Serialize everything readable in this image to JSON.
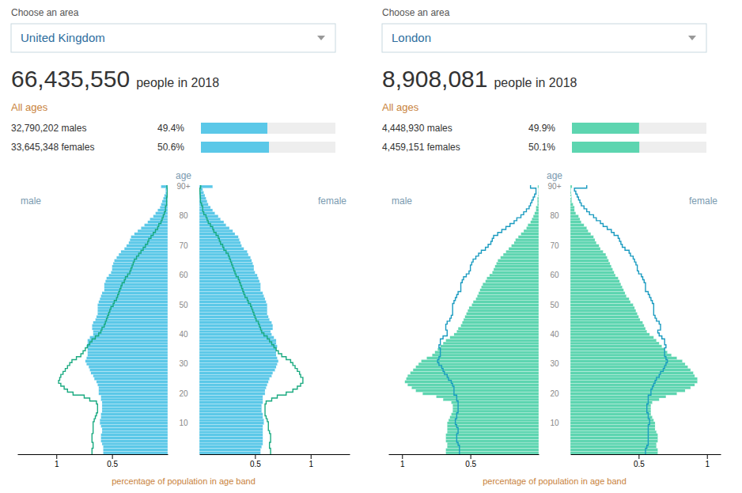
{
  "chart_data": [
    {
      "type": "bar",
      "orientation": "horizontal",
      "annotations": [
        "Choose an area",
        "United Kingdom",
        "66,435,550",
        "people in 2018",
        "All ages"
      ],
      "categories": [
        "32,790,202 males",
        "33,645,348 females"
      ],
      "values": [
        49.4,
        50.6
      ],
      "value_labels": [
        "49.4%",
        "50.6%"
      ],
      "data_labels": true,
      "color": "#5bc8e8",
      "xlim": [
        0,
        100
      ],
      "tick_labels": false
    },
    {
      "type": "bar",
      "orientation": "horizontal",
      "xlabel": "percentage of population in age band",
      "ylabel": "age",
      "categories": [
        null,
        null,
        null,
        null,
        null,
        null,
        null,
        null,
        null,
        null,
        "10",
        null,
        null,
        null,
        null,
        null,
        null,
        null,
        null,
        null,
        "20",
        null,
        null,
        null,
        null,
        null,
        null,
        null,
        null,
        null,
        "30",
        null,
        null,
        null,
        null,
        null,
        null,
        null,
        null,
        null,
        "40",
        null,
        null,
        null,
        null,
        null,
        null,
        null,
        null,
        null,
        "50",
        null,
        null,
        null,
        null,
        null,
        null,
        null,
        null,
        null,
        "60",
        null,
        null,
        null,
        null,
        null,
        null,
        null,
        null,
        null,
        "70",
        null,
        null,
        null,
        null,
        null,
        null,
        null,
        null,
        null,
        "80",
        null,
        null,
        null,
        null,
        null,
        null,
        null,
        null,
        null,
        "90+"
      ],
      "xlim": [
        0,
        1.35
      ],
      "xticks": [
        0.5,
        1
      ],
      "series": [
        {
          "name": "male",
          "type": "bar",
          "color": "#5bc8e8",
          "values": [
            0.58,
            0.58,
            0.58,
            0.59,
            0.6,
            0.6,
            0.6,
            0.59,
            0.59,
            0.6,
            0.61,
            0.61,
            0.6,
            0.6,
            0.59,
            0.59,
            0.59,
            0.59,
            0.6,
            0.6,
            0.62,
            0.62,
            0.62,
            0.63,
            0.64,
            0.66,
            0.67,
            0.69,
            0.7,
            0.71,
            0.73,
            0.74,
            0.73,
            0.72,
            0.72,
            0.72,
            0.73,
            0.72,
            0.72,
            0.7,
            0.67,
            0.67,
            0.68,
            0.68,
            0.67,
            0.65,
            0.64,
            0.63,
            0.63,
            0.63,
            0.63,
            0.62,
            0.61,
            0.6,
            0.59,
            0.57,
            0.57,
            0.57,
            0.56,
            0.55,
            0.53,
            0.51,
            0.5,
            0.5,
            0.49,
            0.48,
            0.46,
            0.44,
            0.42,
            0.39,
            0.37,
            0.35,
            0.34,
            0.33,
            0.3,
            0.27,
            0.24,
            0.21,
            0.18,
            0.16,
            0.13,
            0.11,
            0.09,
            0.07,
            0.06,
            0.05,
            0.04,
            0.03,
            0.02,
            0.02,
            0.06
          ]
        },
        {
          "name": "female",
          "type": "bar",
          "color": "#5bc8e8",
          "values": [
            0.55,
            0.55,
            0.56,
            0.57,
            0.57,
            0.57,
            0.57,
            0.57,
            0.57,
            0.57,
            0.58,
            0.58,
            0.57,
            0.57,
            0.56,
            0.56,
            0.56,
            0.57,
            0.57,
            0.57,
            0.59,
            0.59,
            0.6,
            0.61,
            0.62,
            0.63,
            0.65,
            0.66,
            0.68,
            0.69,
            0.7,
            0.71,
            0.7,
            0.69,
            0.69,
            0.69,
            0.7,
            0.69,
            0.69,
            0.67,
            0.65,
            0.64,
            0.66,
            0.66,
            0.65,
            0.63,
            0.62,
            0.61,
            0.61,
            0.61,
            0.61,
            0.6,
            0.59,
            0.58,
            0.57,
            0.55,
            0.55,
            0.55,
            0.54,
            0.53,
            0.52,
            0.5,
            0.49,
            0.49,
            0.48,
            0.47,
            0.46,
            0.44,
            0.43,
            0.4,
            0.38,
            0.37,
            0.36,
            0.35,
            0.32,
            0.3,
            0.27,
            0.24,
            0.22,
            0.19,
            0.17,
            0.14,
            0.12,
            0.1,
            0.08,
            0.07,
            0.06,
            0.05,
            0.04,
            0.03,
            0.12
          ]
        },
        {
          "type": "line",
          "color": "#1aaa80",
          "values": [
            0.68,
            0.68,
            0.67,
            0.67,
            0.68,
            0.68,
            0.68,
            0.67,
            0.67,
            0.67,
            0.67,
            0.66,
            0.65,
            0.64,
            0.63,
            0.63,
            0.63,
            0.64,
            0.7,
            0.75,
            0.85,
            0.9,
            0.93,
            0.96,
            0.98,
            0.97,
            0.96,
            0.94,
            0.92,
            0.9,
            0.88,
            0.86,
            0.82,
            0.78,
            0.76,
            0.74,
            0.72,
            0.7,
            0.68,
            0.65,
            0.62,
            0.6,
            0.59,
            0.57,
            0.56,
            0.55,
            0.54,
            0.53,
            0.52,
            0.51,
            0.49,
            0.48,
            0.46,
            0.45,
            0.44,
            0.43,
            0.42,
            0.41,
            0.39,
            0.38,
            0.36,
            0.34,
            0.33,
            0.32,
            0.31,
            0.3,
            0.28,
            0.26,
            0.24,
            0.22,
            0.2,
            0.18,
            0.17,
            0.15,
            0.13,
            0.11,
            0.09,
            0.08,
            0.06,
            0.05,
            0.04,
            0.03,
            0.02,
            0.02,
            0.01,
            0.01,
            0.01,
            0.005,
            0.003,
            0.002,
            0.007
          ]
        },
        {
          "type": "line",
          "color": "#1aaa80",
          "values": [
            0.64,
            0.64,
            0.63,
            0.63,
            0.64,
            0.64,
            0.64,
            0.63,
            0.62,
            0.62,
            0.62,
            0.61,
            0.6,
            0.59,
            0.59,
            0.59,
            0.59,
            0.6,
            0.65,
            0.7,
            0.78,
            0.84,
            0.88,
            0.91,
            0.93,
            0.93,
            0.91,
            0.9,
            0.88,
            0.86,
            0.84,
            0.82,
            0.78,
            0.74,
            0.71,
            0.69,
            0.67,
            0.65,
            0.63,
            0.61,
            0.58,
            0.56,
            0.55,
            0.54,
            0.53,
            0.51,
            0.5,
            0.49,
            0.48,
            0.47,
            0.46,
            0.44,
            0.43,
            0.41,
            0.4,
            0.39,
            0.38,
            0.37,
            0.36,
            0.35,
            0.33,
            0.32,
            0.31,
            0.3,
            0.29,
            0.28,
            0.27,
            0.26,
            0.24,
            0.22,
            0.21,
            0.19,
            0.18,
            0.17,
            0.15,
            0.13,
            0.12,
            0.1,
            0.08,
            0.07,
            0.06,
            0.04,
            0.03,
            0.03,
            0.02,
            0.01,
            0.01,
            0.008,
            0.006,
            0.004,
            0.012
          ]
        }
      ]
    },
    {
      "type": "bar",
      "orientation": "horizontal",
      "annotations": [
        "Choose an area",
        "London",
        "8,908,081",
        "people in 2018",
        "All ages"
      ],
      "categories": [
        "4,448,930 males",
        "4,459,151 females"
      ],
      "values": [
        49.9,
        50.1
      ],
      "value_labels": [
        "49.9%",
        "50.1%"
      ],
      "data_labels": true,
      "color": "#5dd5b0",
      "xlim": [
        0,
        100
      ],
      "tick_labels": false
    },
    {
      "type": "bar",
      "orientation": "horizontal",
      "xlabel": "percentage of population in age band",
      "ylabel": "age",
      "categories": [
        null,
        null,
        null,
        null,
        null,
        null,
        null,
        null,
        null,
        null,
        "10",
        null,
        null,
        null,
        null,
        null,
        null,
        null,
        null,
        null,
        "20",
        null,
        null,
        null,
        null,
        null,
        null,
        null,
        null,
        null,
        "30",
        null,
        null,
        null,
        null,
        null,
        null,
        null,
        null,
        null,
        "40",
        null,
        null,
        null,
        null,
        null,
        null,
        null,
        null,
        null,
        "50",
        null,
        null,
        null,
        null,
        null,
        null,
        null,
        null,
        null,
        "60",
        null,
        null,
        null,
        null,
        null,
        null,
        null,
        null,
        null,
        "70",
        null,
        null,
        null,
        null,
        null,
        null,
        null,
        null,
        null,
        "80",
        null,
        null,
        null,
        null,
        null,
        null,
        null,
        null,
        null,
        "90+"
      ],
      "xlim": [
        0,
        1.1
      ],
      "xticks": [
        0.5,
        1
      ],
      "series": [
        {
          "name": "male",
          "type": "bar",
          "color": "#5dd5b0",
          "values": [
            0.68,
            0.68,
            0.67,
            0.67,
            0.68,
            0.68,
            0.68,
            0.67,
            0.67,
            0.67,
            0.67,
            0.66,
            0.65,
            0.64,
            0.63,
            0.63,
            0.63,
            0.64,
            0.7,
            0.75,
            0.85,
            0.9,
            0.93,
            0.96,
            0.98,
            0.97,
            0.96,
            0.94,
            0.92,
            0.9,
            0.88,
            0.86,
            0.82,
            0.78,
            0.76,
            0.74,
            0.72,
            0.7,
            0.68,
            0.65,
            0.62,
            0.6,
            0.59,
            0.57,
            0.56,
            0.55,
            0.54,
            0.53,
            0.52,
            0.51,
            0.49,
            0.48,
            0.46,
            0.45,
            0.44,
            0.43,
            0.42,
            0.41,
            0.39,
            0.38,
            0.36,
            0.34,
            0.33,
            0.32,
            0.31,
            0.3,
            0.28,
            0.26,
            0.24,
            0.22,
            0.2,
            0.18,
            0.17,
            0.15,
            0.13,
            0.11,
            0.09,
            0.08,
            0.06,
            0.05,
            0.04,
            0.03,
            0.02,
            0.02,
            0.01,
            0.01,
            0.01,
            0.005,
            0.003,
            0.002,
            0.007
          ]
        },
        {
          "name": "female",
          "type": "bar",
          "color": "#5dd5b0",
          "values": [
            0.64,
            0.64,
            0.63,
            0.63,
            0.64,
            0.64,
            0.64,
            0.63,
            0.62,
            0.62,
            0.62,
            0.61,
            0.6,
            0.59,
            0.59,
            0.59,
            0.59,
            0.6,
            0.65,
            0.7,
            0.78,
            0.84,
            0.88,
            0.91,
            0.93,
            0.93,
            0.91,
            0.9,
            0.88,
            0.86,
            0.84,
            0.82,
            0.78,
            0.74,
            0.71,
            0.69,
            0.67,
            0.65,
            0.63,
            0.61,
            0.58,
            0.56,
            0.55,
            0.54,
            0.53,
            0.51,
            0.5,
            0.49,
            0.48,
            0.47,
            0.46,
            0.44,
            0.43,
            0.41,
            0.4,
            0.39,
            0.38,
            0.37,
            0.36,
            0.35,
            0.33,
            0.32,
            0.31,
            0.3,
            0.29,
            0.28,
            0.27,
            0.26,
            0.24,
            0.22,
            0.21,
            0.19,
            0.18,
            0.17,
            0.15,
            0.13,
            0.12,
            0.1,
            0.08,
            0.07,
            0.06,
            0.04,
            0.03,
            0.03,
            0.02,
            0.01,
            0.01,
            0.008,
            0.006,
            0.004,
            0.012
          ]
        },
        {
          "type": "line",
          "color": "#1a9bc0",
          "values": [
            0.58,
            0.58,
            0.58,
            0.59,
            0.6,
            0.6,
            0.6,
            0.59,
            0.59,
            0.6,
            0.61,
            0.61,
            0.6,
            0.6,
            0.59,
            0.59,
            0.59,
            0.59,
            0.6,
            0.6,
            0.62,
            0.62,
            0.62,
            0.63,
            0.64,
            0.66,
            0.67,
            0.69,
            0.7,
            0.71,
            0.73,
            0.74,
            0.73,
            0.72,
            0.72,
            0.72,
            0.73,
            0.72,
            0.72,
            0.7,
            0.67,
            0.67,
            0.68,
            0.68,
            0.67,
            0.65,
            0.64,
            0.63,
            0.63,
            0.63,
            0.63,
            0.62,
            0.61,
            0.6,
            0.59,
            0.57,
            0.57,
            0.57,
            0.56,
            0.55,
            0.53,
            0.51,
            0.5,
            0.5,
            0.49,
            0.48,
            0.46,
            0.44,
            0.42,
            0.39,
            0.37,
            0.35,
            0.34,
            0.33,
            0.3,
            0.27,
            0.24,
            0.21,
            0.18,
            0.16,
            0.13,
            0.11,
            0.09,
            0.07,
            0.06,
            0.05,
            0.04,
            0.03,
            0.02,
            0.02,
            0.06
          ]
        },
        {
          "type": "line",
          "color": "#1a9bc0",
          "values": [
            0.55,
            0.55,
            0.56,
            0.57,
            0.57,
            0.57,
            0.57,
            0.57,
            0.57,
            0.57,
            0.58,
            0.58,
            0.57,
            0.57,
            0.56,
            0.56,
            0.56,
            0.57,
            0.57,
            0.57,
            0.59,
            0.59,
            0.6,
            0.61,
            0.62,
            0.63,
            0.65,
            0.66,
            0.68,
            0.69,
            0.7,
            0.71,
            0.7,
            0.69,
            0.69,
            0.69,
            0.7,
            0.69,
            0.69,
            0.67,
            0.65,
            0.64,
            0.66,
            0.66,
            0.65,
            0.63,
            0.62,
            0.61,
            0.61,
            0.61,
            0.61,
            0.6,
            0.59,
            0.58,
            0.57,
            0.55,
            0.55,
            0.55,
            0.54,
            0.53,
            0.52,
            0.5,
            0.49,
            0.49,
            0.48,
            0.47,
            0.46,
            0.44,
            0.43,
            0.4,
            0.38,
            0.37,
            0.36,
            0.35,
            0.32,
            0.3,
            0.27,
            0.24,
            0.22,
            0.19,
            0.17,
            0.14,
            0.12,
            0.1,
            0.08,
            0.07,
            0.06,
            0.05,
            0.04,
            0.03,
            0.12
          ]
        }
      ]
    }
  ]
}
